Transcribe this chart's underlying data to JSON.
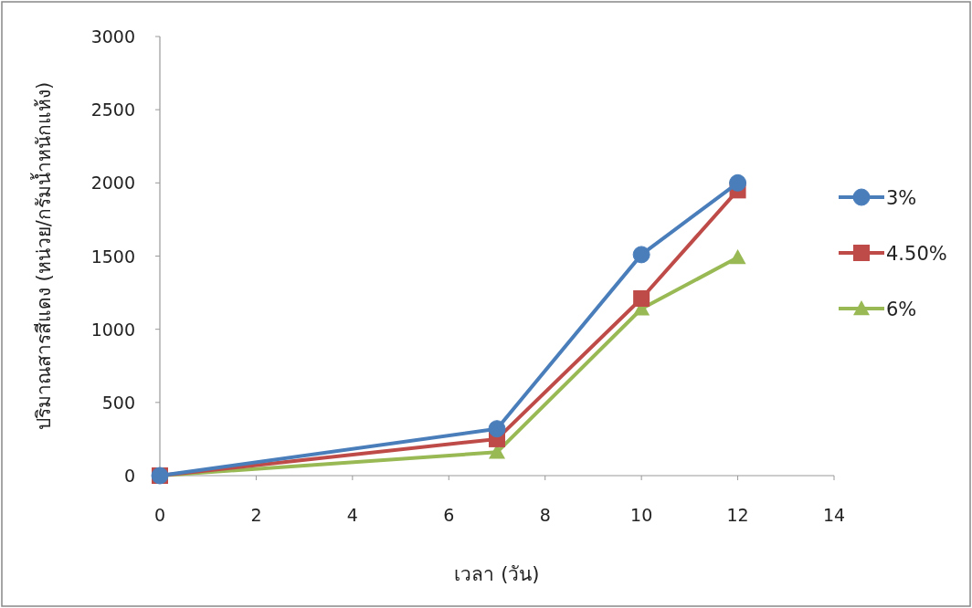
{
  "chart_data": {
    "type": "line",
    "xlabel": "เวลา (วัน)",
    "ylabel": "ปริมาณสารสีแดง (หน่วย/กรัมน้ำหนักแห้ง)",
    "xlim": [
      0,
      14
    ],
    "ylim": [
      0,
      3000
    ],
    "xticks": [
      0,
      2,
      4,
      6,
      8,
      10,
      12,
      14
    ],
    "yticks": [
      0,
      500,
      1000,
      1500,
      2000,
      2500,
      3000
    ],
    "legend": "right",
    "series": [
      {
        "name": "3%",
        "color": "#4a7ebb",
        "marker": "circle",
        "x": [
          0,
          7,
          10,
          12
        ],
        "values": [
          0,
          320,
          1510,
          2000
        ]
      },
      {
        "name": "4.50%",
        "color": "#be4b48",
        "marker": "square",
        "x": [
          0,
          7,
          10,
          12
        ],
        "values": [
          0,
          250,
          1210,
          1950
        ]
      },
      {
        "name": "6%",
        "color": "#98b954",
        "marker": "triangle",
        "x": [
          0,
          7,
          10,
          12
        ],
        "values": [
          0,
          160,
          1140,
          1490
        ]
      }
    ]
  }
}
